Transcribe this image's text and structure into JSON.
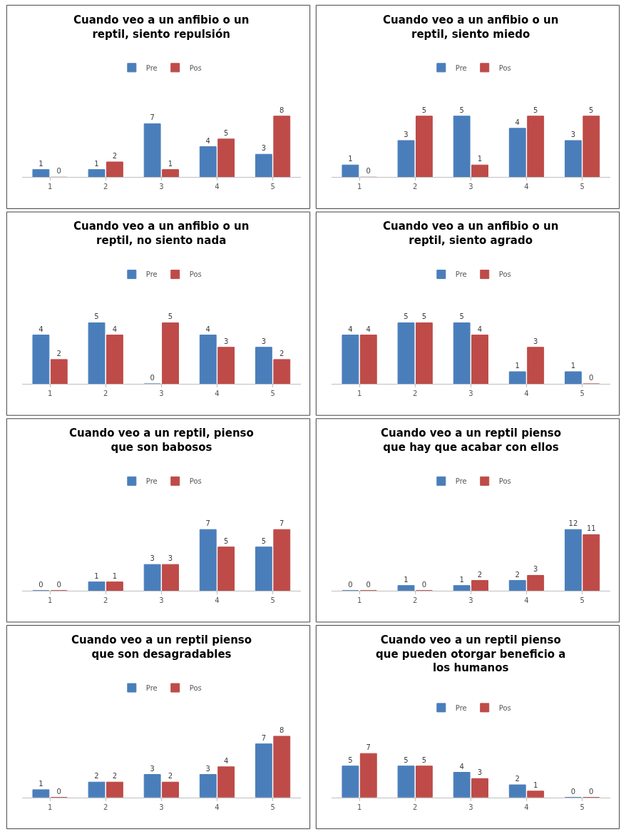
{
  "chart_data": [
    {
      "type": "bar",
      "title": "Cuando veo a un anfibio o un reptil, siento repulsión",
      "categories": [
        "1",
        "2",
        "3",
        "4",
        "5"
      ],
      "series": [
        {
          "name": "Pre",
          "color": "#4a7ebb",
          "values": [
            1,
            1,
            7,
            4,
            3
          ]
        },
        {
          "name": "Pos",
          "color": "#be4b48",
          "values": [
            0,
            2,
            1,
            5,
            8
          ]
        }
      ],
      "data_labels": true,
      "legend": "top",
      "tick_labels": "x"
    },
    {
      "type": "bar",
      "title": "Cuando veo a un anfibio o un reptil, siento miedo",
      "categories": [
        "1",
        "2",
        "3",
        "4",
        "5"
      ],
      "series": [
        {
          "name": "Pre",
          "color": "#4a7ebb",
          "values": [
            1,
            3,
            5,
            4,
            3
          ]
        },
        {
          "name": "Pos",
          "color": "#be4b48",
          "values": [
            0,
            5,
            1,
            5,
            5
          ]
        }
      ],
      "data_labels": true,
      "legend": "top",
      "tick_labels": "x"
    },
    {
      "type": "bar",
      "title": "Cuando veo a un anfibio o un reptil, no siento nada",
      "categories": [
        "1",
        "2",
        "3",
        "4",
        "5"
      ],
      "series": [
        {
          "name": "Pre",
          "color": "#4a7ebb",
          "values": [
            4,
            5,
            0,
            4,
            3
          ]
        },
        {
          "name": "Pos",
          "color": "#be4b48",
          "values": [
            2,
            4,
            5,
            3,
            2
          ]
        }
      ],
      "data_labels": true,
      "legend": "top",
      "tick_labels": "x"
    },
    {
      "type": "bar",
      "title": "Cuando veo a un anfibio o un reptil, siento agrado",
      "categories": [
        "1",
        "2",
        "3",
        "4",
        "5"
      ],
      "series": [
        {
          "name": "Pre",
          "color": "#4a7ebb",
          "values": [
            4,
            5,
            5,
            1,
            1
          ]
        },
        {
          "name": "Pos",
          "color": "#be4b48",
          "values": [
            4,
            5,
            4,
            3,
            0
          ]
        }
      ],
      "data_labels": true,
      "legend": "top",
      "tick_labels": "x"
    },
    {
      "type": "bar",
      "title": "Cuando veo a un reptil, pienso que son babosos",
      "categories": [
        "1",
        "2",
        "3",
        "4",
        "5"
      ],
      "series": [
        {
          "name": "Pre",
          "color": "#4a7ebb",
          "values": [
            0,
            1,
            3,
            7,
            5
          ]
        },
        {
          "name": "Pos",
          "color": "#be4b48",
          "values": [
            0,
            1,
            3,
            5,
            7
          ]
        }
      ],
      "data_labels": true,
      "legend": "top",
      "tick_labels": "x"
    },
    {
      "type": "bar",
      "title": "Cuando veo a un reptil pienso que hay que acabar con ellos",
      "categories": [
        "1",
        "2",
        "3",
        "4",
        "5"
      ],
      "series": [
        {
          "name": "Pre",
          "color": "#4a7ebb",
          "values": [
            0,
            1,
            1,
            2,
            12
          ]
        },
        {
          "name": "Pos",
          "color": "#be4b48",
          "values": [
            0,
            0,
            2,
            3,
            11
          ]
        }
      ],
      "data_labels": true,
      "legend": "top",
      "tick_labels": "x"
    },
    {
      "type": "bar",
      "title": "Cuando veo a un reptil pienso que son desagradables",
      "categories": [
        "1",
        "2",
        "3",
        "4",
        "5"
      ],
      "series": [
        {
          "name": "Pre",
          "color": "#4a7ebb",
          "values": [
            1,
            2,
            3,
            3,
            7
          ]
        },
        {
          "name": "Pos",
          "color": "#be4b48",
          "values": [
            0,
            2,
            2,
            4,
            8
          ]
        }
      ],
      "data_labels": true,
      "legend": "top",
      "tick_labels": "x"
    },
    {
      "type": "bar",
      "title": "Cuando veo a un reptil pienso que pueden otorgar beneficio a los humanos",
      "categories": [
        "1",
        "2",
        "3",
        "4",
        "5"
      ],
      "series": [
        {
          "name": "Pre",
          "color": "#4a7ebb",
          "values": [
            5,
            5,
            4,
            2,
            0
          ]
        },
        {
          "name": "Pos",
          "color": "#be4b48",
          "values": [
            7,
            5,
            3,
            1,
            0
          ]
        }
      ],
      "data_labels": true,
      "legend": "top",
      "tick_labels": "x"
    }
  ]
}
